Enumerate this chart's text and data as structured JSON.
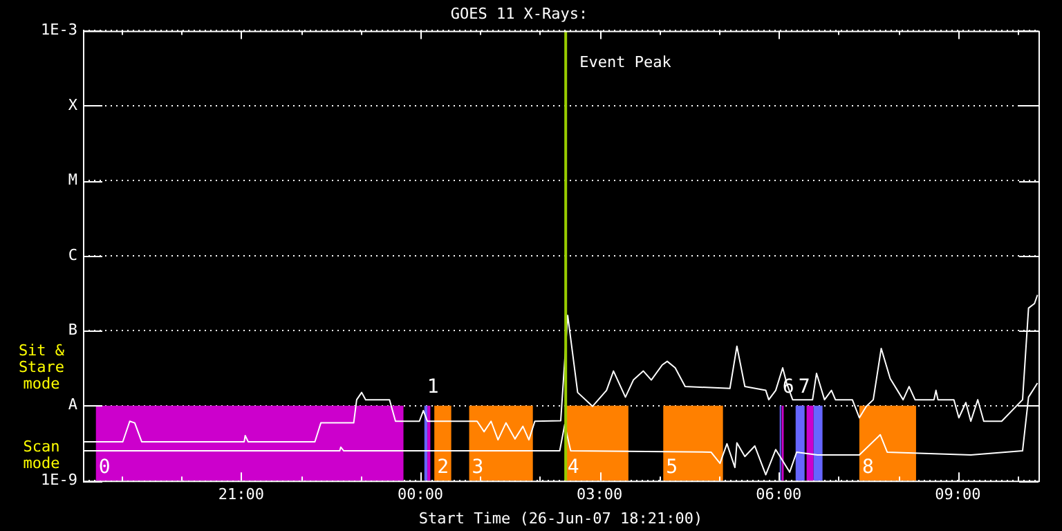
{
  "chart_data": {
    "type": "line",
    "title": "GOES 11 X-Rays:",
    "xlabel": "Start Time (26-Jun-07 18:21:00)",
    "annotations": [
      "Sit & Stare mode",
      "Scan mode"
    ],
    "log": "y",
    "grid": "y",
    "legend": false,
    "marker": "none",
    "line_style": "solid",
    "xlim": [
      "--06-26T18:21",
      "--06-27T10:21"
    ],
    "xticks": [
      {
        "value": "--06-26T19:00",
        "label": null
      },
      {
        "value": "--06-26T20:00",
        "label": null
      },
      {
        "value": "--06-26T21:00",
        "label": "21:00"
      },
      {
        "value": "--06-26T22:00",
        "label": null
      },
      {
        "value": "--06-26T23:00",
        "label": null
      },
      {
        "value": "--06-27T00:00",
        "label": "00:00"
      },
      {
        "value": "--06-27T01:00",
        "label": null
      },
      {
        "value": "--06-27T02:00",
        "label": null
      },
      {
        "value": "--06-27T03:00",
        "label": "03:00"
      },
      {
        "value": "--06-27T04:00",
        "label": null
      },
      {
        "value": "--06-27T05:00",
        "label": null
      },
      {
        "value": "--06-27T06:00",
        "label": "06:00"
      },
      {
        "value": "--06-27T07:00",
        "label": null
      },
      {
        "value": "--06-27T08:00",
        "label": null
      },
      {
        "value": "--06-27T09:00",
        "label": "09:00"
      },
      {
        "value": "--06-27T10:00",
        "label": null
      }
    ],
    "ylim": [
      1e-09,
      0.001
    ],
    "yticks": [
      {
        "value": 1e-09,
        "label": "1E-9"
      },
      {
        "value": 1e-08,
        "label": "A"
      },
      {
        "value": 1e-07,
        "label": "B"
      },
      {
        "value": 1e-06,
        "label": "C"
      },
      {
        "value": 1e-05,
        "label": "M"
      },
      {
        "value": 0.0001,
        "label": "X"
      },
      {
        "value": 0.001,
        "label": "1E-3"
      }
    ],
    "ref_lines": [
      {
        "axis": "x",
        "value": "--06-27T02:26",
        "label": "Event Peak",
        "color": "#99cc00"
      }
    ],
    "bands": [
      {
        "axis": "x",
        "from": "--06-26T18:34",
        "to": "--06-26T23:43",
        "label": "0",
        "color": "#cc00cc"
      },
      {
        "axis": "x",
        "from": "--06-27T00:04",
        "to": "--06-27T00:07",
        "label": "1",
        "color": "#6666ff"
      },
      {
        "axis": "x",
        "from": "--06-27T00:07",
        "to": "--06-27T00:10",
        "color": "#cc00cc"
      },
      {
        "axis": "x",
        "from": "--06-27T00:14",
        "to": "--06-27T00:31",
        "label": "2",
        "color": "#ff8000"
      },
      {
        "axis": "x",
        "from": "--06-27T00:49",
        "to": "--06-27T01:53",
        "label": "3",
        "color": "#ff8000"
      },
      {
        "axis": "x",
        "from": "--06-27T02:25",
        "to": "--06-27T03:29",
        "label": "4",
        "color": "#ff8000"
      },
      {
        "axis": "x",
        "from": "--06-27T04:04",
        "to": "--06-27T05:04",
        "label": "5",
        "color": "#ff8000"
      },
      {
        "axis": "x",
        "from": "--06-27T06:01",
        "to": "--06-27T06:02",
        "label": "6",
        "color": "#6666ff"
      },
      {
        "axis": "x",
        "from": "--06-27T06:03",
        "to": "--06-27T06:05",
        "color": "#cc00cc"
      },
      {
        "axis": "x",
        "from": "--06-27T06:21",
        "to": "--06-27T06:25",
        "color": "#cc00cc"
      },
      {
        "axis": "x",
        "from": "--06-27T06:17",
        "to": "--06-27T06:26",
        "label": "7",
        "color": "#6666ff"
      },
      {
        "axis": "x",
        "from": "--06-27T06:28",
        "to": "--06-27T06:35",
        "color": "#cc00cc"
      },
      {
        "axis": "x",
        "from": "--06-27T06:35",
        "to": "--06-27T06:44",
        "color": "#6666ff"
      },
      {
        "axis": "x",
        "from": "--06-27T07:21",
        "to": "--06-27T08:18",
        "label": "8",
        "color": "#ff8000"
      }
    ],
    "series": [
      {
        "color": "#ffffff",
        "x": [
          "--06-26T18:21",
          "--06-26T19:01",
          "--06-26T19:08",
          "--06-26T19:13",
          "--06-26T19:20",
          "--06-26T21:03",
          "--06-26T21:04",
          "--06-26T21:07",
          "--06-26T22:14",
          "--06-26T22:20",
          "--06-26T22:53",
          "--06-26T22:56",
          "--06-26T23:01",
          "--06-26T23:05",
          "--06-26T23:29",
          "--06-26T23:35",
          "--06-26T23:59",
          "--06-27T00:03",
          "--06-27T00:07",
          "--06-27T00:57",
          "--06-27T01:04",
          "--06-27T01:11",
          "--06-27T01:18",
          "--06-27T01:26",
          "--06-27T01:35",
          "--06-27T01:43",
          "--06-27T01:49",
          "--06-27T01:55",
          "--06-27T02:21",
          "--06-27T02:28",
          "--06-27T02:38",
          "--06-27T02:53",
          "--06-27T03:07",
          "--06-27T03:14",
          "--06-27T03:26",
          "--06-27T03:34",
          "--06-27T03:44",
          "--06-27T03:52",
          "--06-27T04:03",
          "--06-27T04:08",
          "--06-27T04:16",
          "--06-27T04:26",
          "--06-27T05:11",
          "--06-27T05:18",
          "--06-27T05:26",
          "--06-27T05:47",
          "--06-27T05:50",
          "--06-27T05:57",
          "--06-27T06:04",
          "--06-27T06:08",
          "--06-27T06:14",
          "--06-27T06:34",
          "--06-27T06:38",
          "--06-27T06:46",
          "--06-27T06:53",
          "--06-27T06:57",
          "--06-27T07:14",
          "--06-27T07:21",
          "--06-27T07:28",
          "--06-27T07:35",
          "--06-27T07:43",
          "--06-27T07:52",
          "--06-27T08:05",
          "--06-27T08:11",
          "--06-27T08:17",
          "--06-27T08:36",
          "--06-27T08:38",
          "--06-27T08:40",
          "--06-27T08:56",
          "--06-27T09:01",
          "--06-27T09:08",
          "--06-27T09:13",
          "--06-27T09:20",
          "--06-27T09:26",
          "--06-27T09:44",
          "--06-27T10:05",
          "--06-27T10:11",
          "--06-27T10:17",
          "--06-27T10:20"
        ],
        "values": [
          3.3e-09,
          3.3e-09,
          6.2e-09,
          5.9e-09,
          3.3e-09,
          3.3e-09,
          4e-09,
          3.3e-09,
          3.3e-09,
          5.9e-09,
          5.9e-09,
          1.2e-08,
          1.5e-08,
          1.2e-08,
          1.2e-08,
          6.2e-09,
          6.2e-09,
          8.6e-09,
          6.2e-09,
          6.2e-09,
          4.5e-09,
          6.2e-09,
          3.5e-09,
          5.9e-09,
          3.6e-09,
          5.3e-09,
          3.5e-09,
          6.2e-09,
          6.3e-09,
          1.6e-07,
          1.5e-08,
          9.8e-09,
          1.6e-08,
          2.9e-08,
          1.3e-08,
          2.2e-08,
          2.9e-08,
          2.2e-08,
          3.5e-08,
          3.9e-08,
          3.2e-08,
          1.8e-08,
          1.7e-08,
          6.2e-08,
          1.8e-08,
          1.6e-08,
          1.2e-08,
          1.6e-08,
          3.2e-08,
          2e-08,
          1.2e-08,
          1.2e-08,
          2.7e-08,
          1.2e-08,
          1.6e-08,
          1.2e-08,
          1.2e-08,
          6.9e-09,
          9.8e-09,
          1.2e-08,
          5.8e-08,
          2.3e-08,
          1.2e-08,
          1.8e-08,
          1.2e-08,
          1.2e-08,
          1.6e-08,
          1.2e-08,
          1.2e-08,
          6.9e-09,
          1.1e-08,
          6.2e-09,
          1.2e-08,
          6.2e-09,
          6.2e-09,
          1.2e-08,
          2e-07,
          2.3e-07,
          3e-07
        ]
      },
      {
        "color": "#ffffff",
        "x": [
          "--06-26T18:21",
          "--06-26T22:39",
          "--06-26T22:40",
          "--06-26T22:43",
          "--06-27T02:20",
          "--06-27T02:25",
          "--06-27T02:31",
          "--06-27T04:52",
          "--06-27T05:01",
          "--06-27T05:08",
          "--06-27T05:16",
          "--06-27T05:18",
          "--06-27T05:26",
          "--06-27T05:36",
          "--06-27T05:47",
          "--06-27T05:57",
          "--06-27T06:11",
          "--06-27T06:18",
          "--06-27T06:39",
          "--06-27T07:21",
          "--06-27T07:42",
          "--06-27T07:49",
          "--06-27T09:13",
          "--06-27T10:05",
          "--06-27T10:11",
          "--06-27T10:20"
        ],
        "values": [
          2.5e-09,
          2.5e-09,
          2.8e-09,
          2.5e-09,
          2.5e-09,
          5.6e-09,
          2.5e-09,
          2.4e-09,
          1.7e-09,
          3.1e-09,
          1.5e-09,
          3.2e-09,
          2.1e-09,
          2.9e-09,
          1.2e-09,
          2.6e-09,
          1.3e-09,
          2.4e-09,
          2.2e-09,
          2.2e-09,
          4.1e-09,
          2.4e-09,
          2.2e-09,
          2.5e-09,
          1.3e-08,
          2e-08
        ]
      }
    ]
  }
}
